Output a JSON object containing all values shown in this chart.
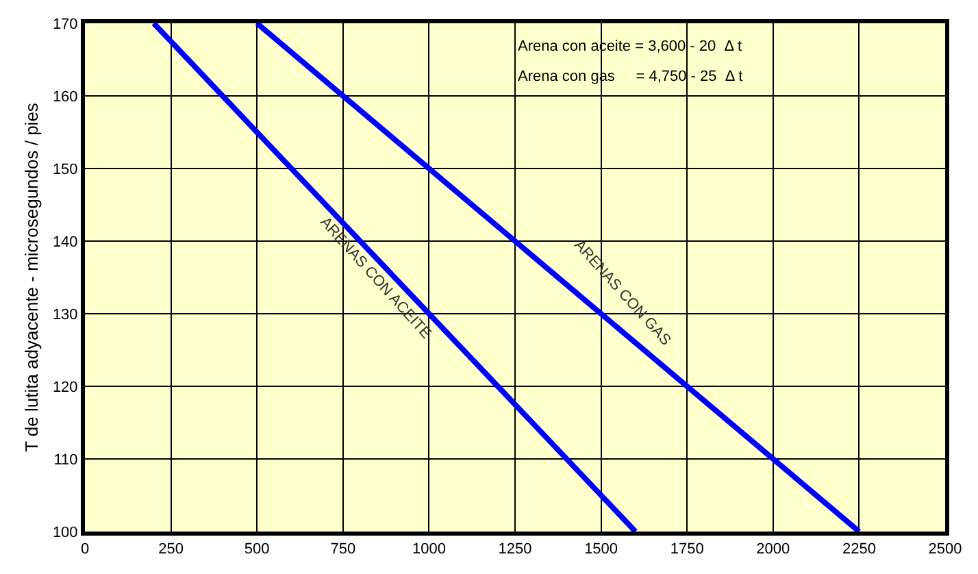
{
  "chart_data": {
    "type": "line",
    "ylabel": "T de lutita adyacente - microsegundos / pies",
    "xlim": [
      0,
      2500
    ],
    "xticks": [
      0,
      250,
      500,
      750,
      1000,
      1250,
      1500,
      1750,
      2000,
      2250,
      2500
    ],
    "ylim": [
      100,
      170
    ],
    "yticks": [
      100,
      110,
      120,
      130,
      140,
      150,
      160,
      170
    ],
    "grid": true,
    "marker": "none",
    "line_style": "solid",
    "series": [
      {
        "x": [
          200,
          1600
        ],
        "values": [
          170,
          100
        ],
        "color": "#0000ff"
      },
      {
        "x": [
          500,
          2250
        ],
        "values": [
          170,
          100
        ],
        "color": "#0000ff"
      }
    ],
    "annotations": [
      "Arena con aceite = 3,600 - 20  Δ t",
      "Arena con gas     = 4,750 - 25  Δ t",
      "ARENAS CON ACEITE",
      "ARENAS CON GAS"
    ]
  }
}
